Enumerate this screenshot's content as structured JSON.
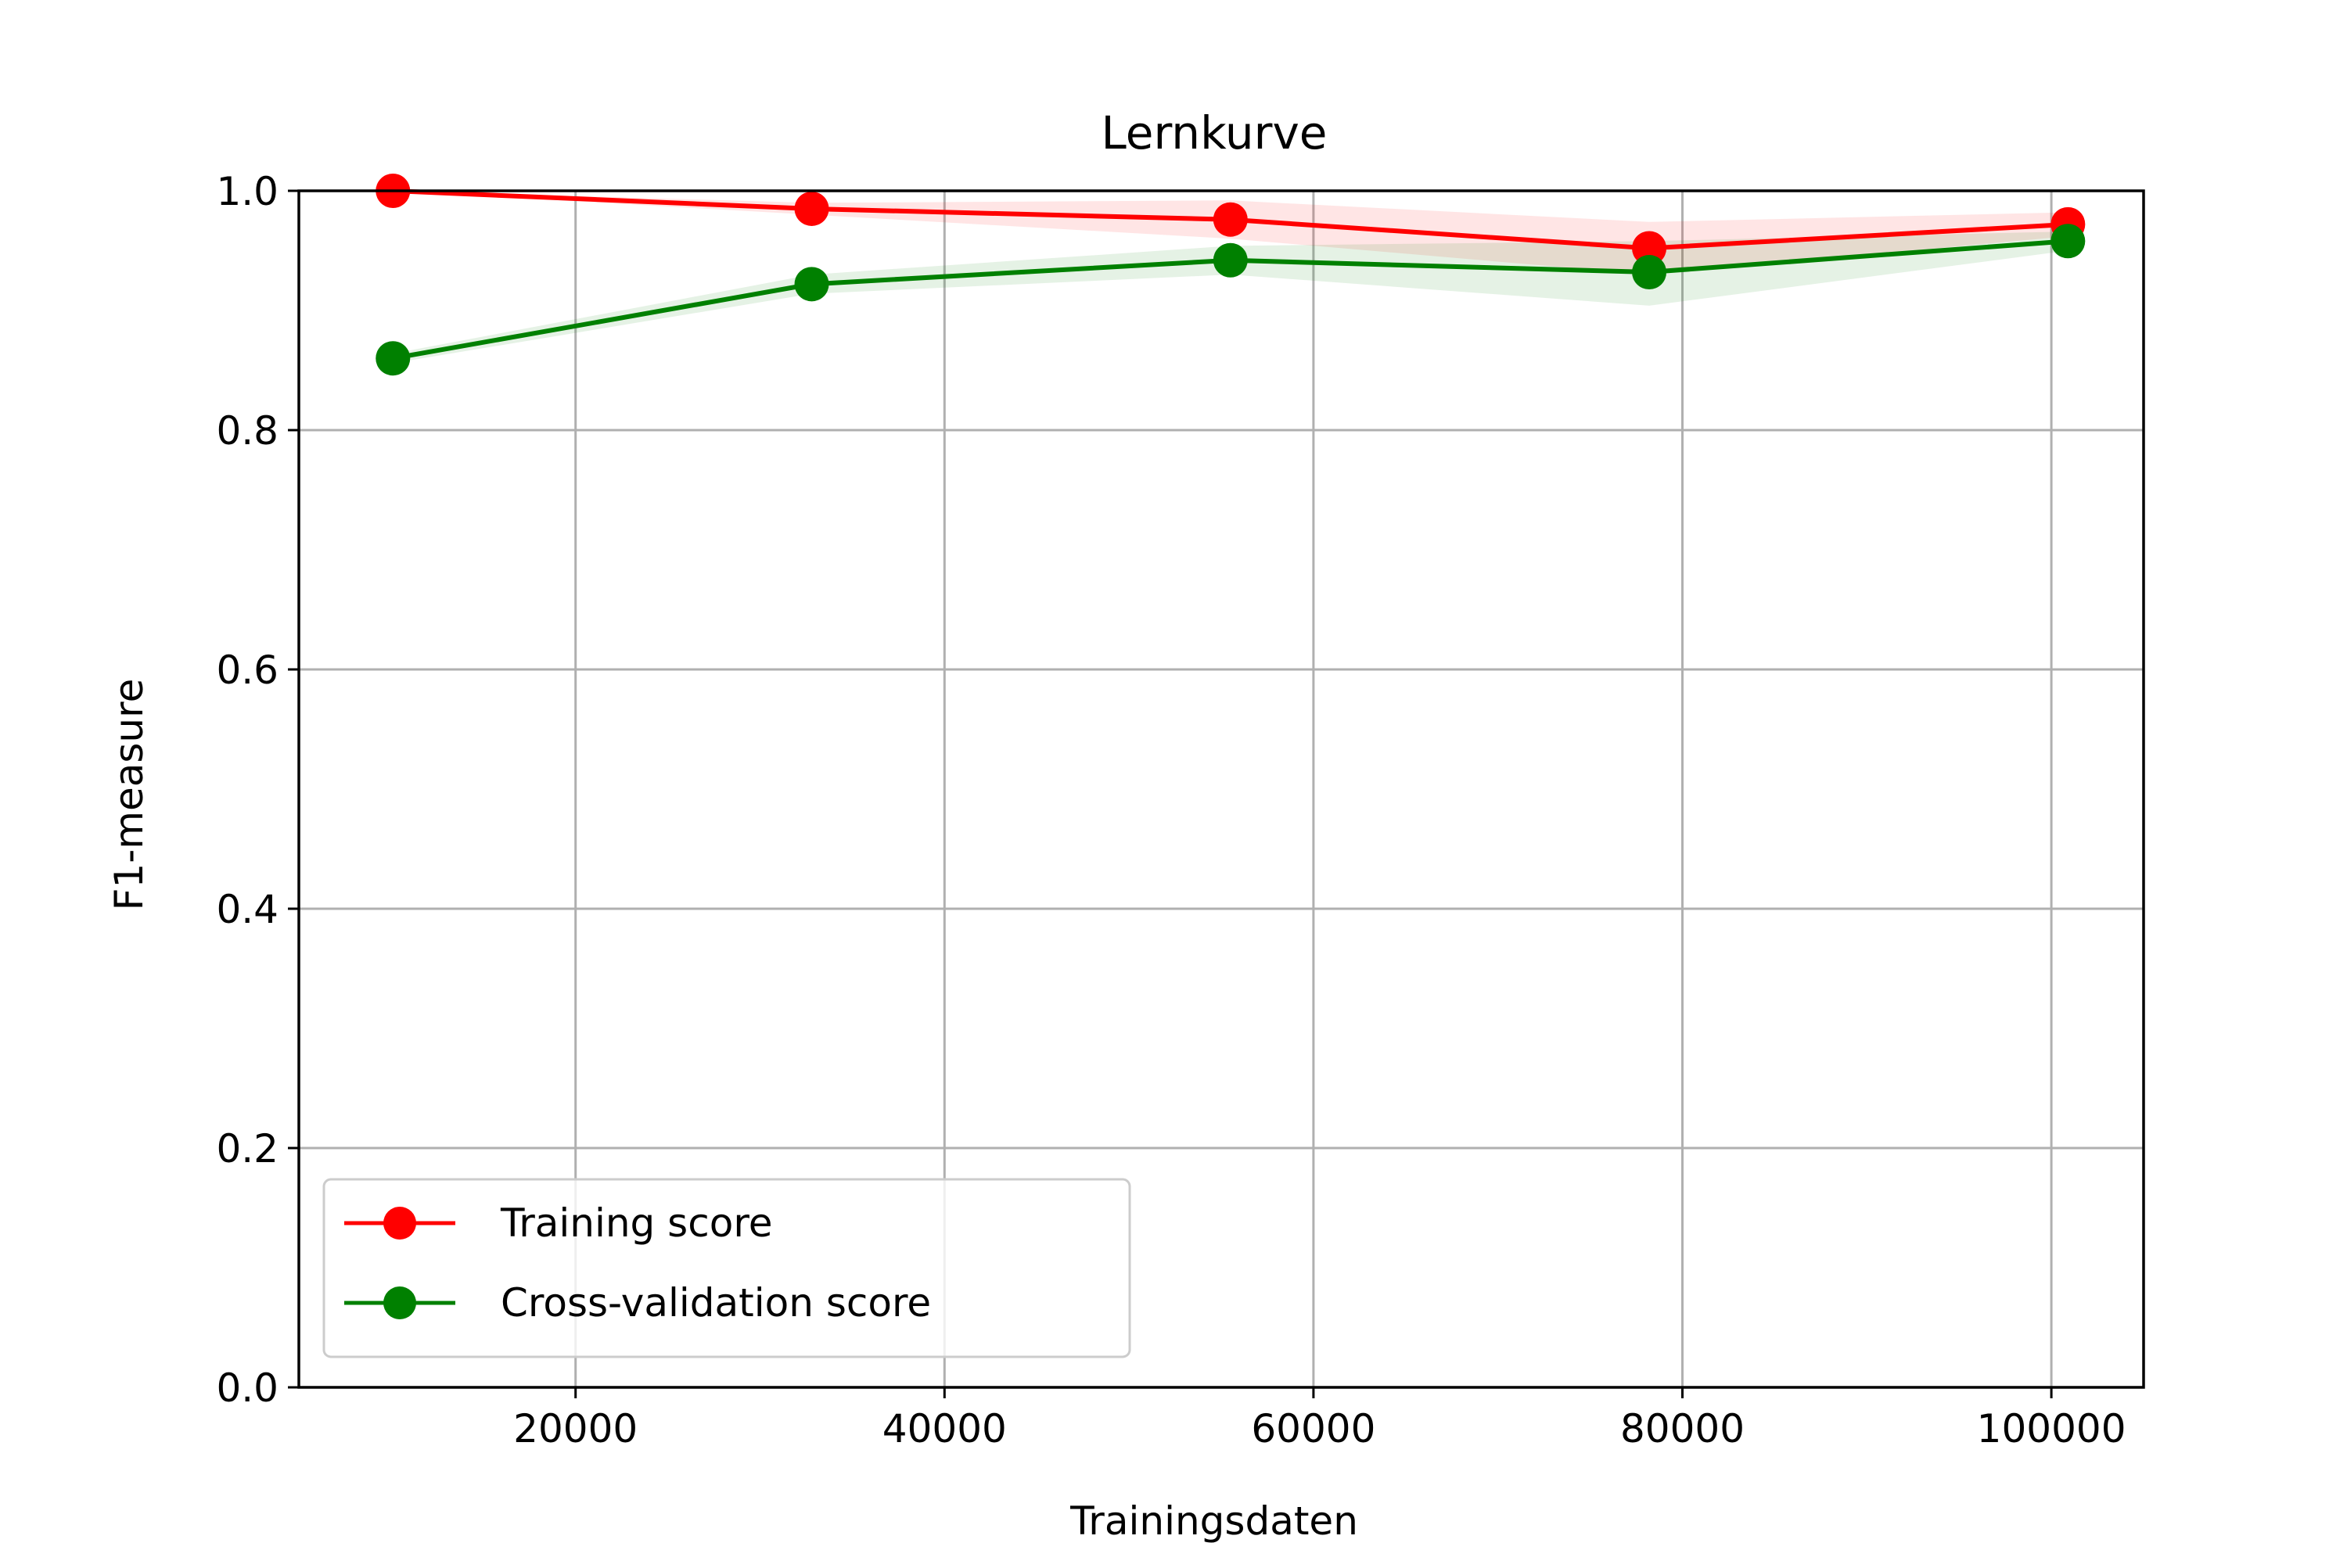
{
  "chart_data": {
    "type": "line",
    "title": "Lernkurve",
    "xlabel": "Trainingsdaten",
    "ylabel": "F1-measure",
    "xlim": [
      5000,
      105000
    ],
    "ylim": [
      0.0,
      1.0
    ],
    "xticks": [
      20000,
      40000,
      60000,
      80000,
      100000
    ],
    "yticks": [
      0.0,
      0.2,
      0.4,
      0.6,
      0.8,
      1.0
    ],
    "x_tick_labels": [
      "20000",
      "40000",
      "60000",
      "80000",
      "100000"
    ],
    "y_tick_labels": [
      "0.0",
      "0.2",
      "0.4",
      "0.6",
      "0.8",
      "1.0"
    ],
    "grid": true,
    "legend_position": "lower-left",
    "x": [
      10100,
      32800,
      55500,
      78200,
      100900
    ],
    "series": [
      {
        "name": "Training score",
        "color": "#ff0000",
        "values": [
          1.0,
          0.985,
          0.976,
          0.952,
          0.972
        ],
        "band_lower": [
          1.0,
          0.98,
          0.96,
          0.93,
          0.962
        ],
        "band_upper": [
          1.0,
          0.99,
          0.992,
          0.974,
          0.982
        ]
      },
      {
        "name": "Cross-validation score",
        "color": "#008000",
        "values": [
          0.86,
          0.922,
          0.942,
          0.932,
          0.958
        ],
        "band_lower": [
          0.856,
          0.914,
          0.93,
          0.904,
          0.95
        ],
        "band_upper": [
          0.864,
          0.93,
          0.954,
          0.958,
          0.966
        ]
      }
    ]
  }
}
